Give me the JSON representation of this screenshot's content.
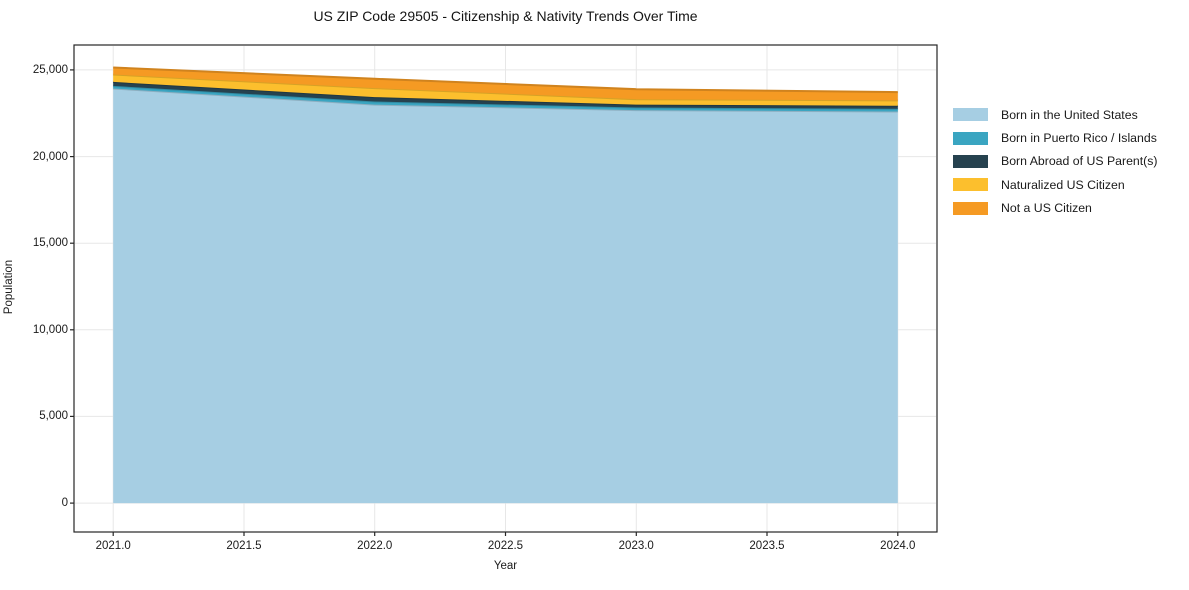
{
  "chart_data": {
    "type": "area",
    "stacked": true,
    "title": "US ZIP Code 29505 - Citizenship & Nativity Trends Over Time",
    "xlabel": "Year",
    "ylabel": "Population",
    "x": [
      2021,
      2022,
      2023,
      2024
    ],
    "series": [
      {
        "name": "Born in the United States",
        "color": "#a6cee3",
        "values": [
          23930,
          23000,
          22680,
          22600
        ]
      },
      {
        "name": "Born in Puerto Rico / Islands",
        "color": "#3aa5c1",
        "values": [
          150,
          180,
          150,
          160
        ]
      },
      {
        "name": "Born Abroad of US Parent(s)",
        "color": "#26424f",
        "values": [
          230,
          250,
          170,
          170
        ]
      },
      {
        "name": "Naturalized US Citizen",
        "color": "#fcbf2d",
        "values": [
          430,
          520,
          310,
          310
        ]
      },
      {
        "name": "Not a US Citizen",
        "color": "#f59a23",
        "values": [
          400,
          540,
          580,
          480
        ]
      }
    ],
    "stacked_totals": [
      25140,
      24490,
      23890,
      23720
    ],
    "xlim": [
      2020.85,
      2024.15
    ],
    "ylim": [
      -1670,
      26440
    ],
    "xticks": {
      "values": [
        2021.0,
        2021.5,
        2022.0,
        2022.5,
        2023.0,
        2023.5,
        2024.0
      ],
      "labels": [
        "2021.0",
        "2021.5",
        "2022.0",
        "2022.5",
        "2023.0",
        "2023.5",
        "2024.0"
      ]
    },
    "yticks": {
      "values": [
        0,
        5000,
        10000,
        15000,
        20000,
        25000
      ],
      "labels": [
        "0",
        "5,000",
        "10,000",
        "15,000",
        "20,000",
        "25,000"
      ]
    },
    "grid": true,
    "legend_position": "right",
    "colors": {
      "grid": "#e7e7e7",
      "spine": "#262626",
      "text": "#1a1a1a",
      "background": "#ffffff"
    }
  }
}
